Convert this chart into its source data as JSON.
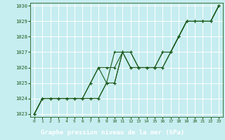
{
  "background_color": "#c6edf0",
  "grid_color": "#ffffff",
  "line_color": "#1e5c1e",
  "marker_color": "#1e5c1e",
  "label_bg_color": "#2d8b2d",
  "xlabel": "Graphe pression niveau de la mer (hPa)",
  "xlabel_fontsize": 6.5,
  "xlim": [
    -0.5,
    23.5
  ],
  "ylim": [
    1022.8,
    1030.2
  ],
  "yticks": [
    1023,
    1024,
    1025,
    1026,
    1027,
    1028,
    1029,
    1030
  ],
  "xticks": [
    0,
    1,
    2,
    3,
    4,
    5,
    6,
    7,
    8,
    9,
    10,
    11,
    12,
    13,
    14,
    15,
    16,
    17,
    18,
    19,
    20,
    21,
    22,
    23
  ],
  "series": [
    [
      1023.0,
      1024.0,
      1024.0,
      1024.0,
      1024.0,
      1024.0,
      1024.0,
      1024.0,
      1024.0,
      1025.0,
      1025.0,
      1027.0,
      1026.0,
      1026.0,
      1026.0,
      1026.0,
      1026.0,
      1027.0,
      1028.0,
      1029.0,
      1029.0,
      1029.0,
      1029.0,
      1030.0
    ],
    [
      1023.0,
      1024.0,
      1024.0,
      1024.0,
      1024.0,
      1024.0,
      1024.0,
      1024.0,
      1024.0,
      1025.0,
      1027.0,
      1027.0,
      1026.0,
      1026.0,
      1026.0,
      1026.0,
      1027.0,
      1027.0,
      1028.0,
      1029.0,
      1029.0,
      1029.0,
      1029.0,
      1030.0
    ],
    [
      1023.0,
      1024.0,
      1024.0,
      1024.0,
      1024.0,
      1024.0,
      1024.0,
      1025.0,
      1026.0,
      1026.0,
      1026.0,
      1027.0,
      1027.0,
      1026.0,
      1026.0,
      1026.0,
      1026.0,
      1027.0,
      1028.0,
      1029.0,
      1029.0,
      1029.0,
      1029.0,
      1030.0
    ],
    [
      1023.0,
      1024.0,
      1024.0,
      1024.0,
      1024.0,
      1024.0,
      1024.0,
      1025.0,
      1026.0,
      1025.0,
      1025.0,
      1027.0,
      1027.0,
      1026.0,
      1026.0,
      1026.0,
      1027.0,
      1027.0,
      1028.0,
      1029.0,
      1029.0,
      1029.0,
      1029.0,
      1030.0
    ]
  ]
}
